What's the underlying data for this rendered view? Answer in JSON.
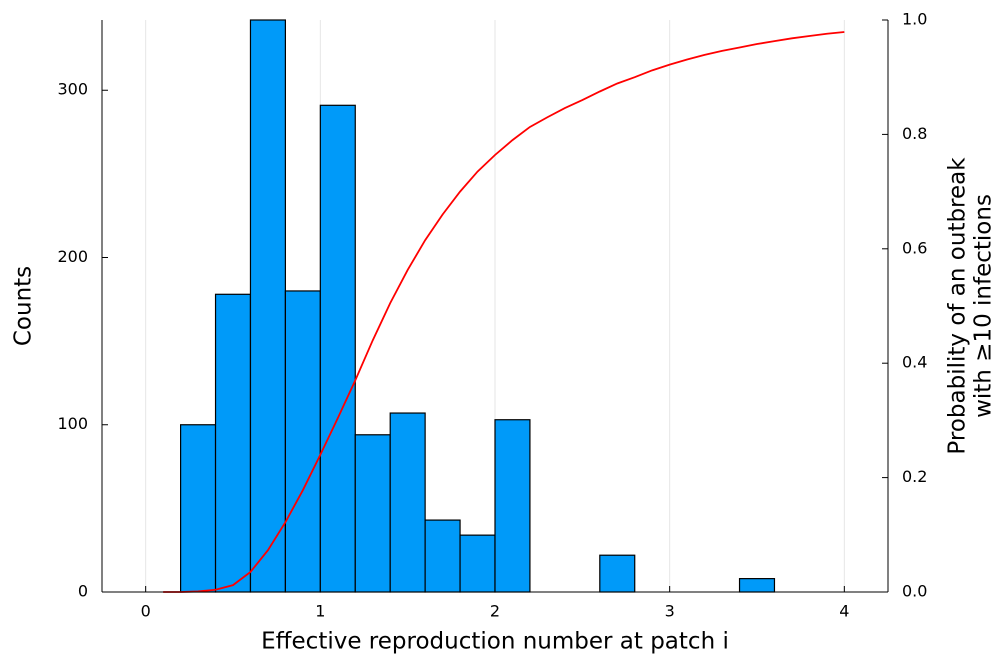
{
  "chart_data": {
    "type": "histogram",
    "xlabel": "Effective reproduction number at patch i",
    "ylabel": "Counts",
    "y2label": [
      "Probability of an outbreak",
      "with ≥10 infections"
    ],
    "xlim": [
      -0.25,
      4.25
    ],
    "xticks": [
      0,
      1,
      2,
      3,
      4
    ],
    "ylim": [
      0,
      342
    ],
    "yticks": [
      0,
      100,
      200,
      300
    ],
    "y2lim": [
      0,
      1
    ],
    "y2ticks": [
      {
        "value": 0,
        "label": "0.0"
      },
      0.2,
      0.4,
      0.6,
      0.8,
      {
        "value": 1,
        "label": "1.0"
      }
    ],
    "grid": "x",
    "series": [
      {
        "type": "histogram",
        "color": "#009af9",
        "bins": [
          0.2,
          0.4,
          0.6,
          0.8,
          1.0,
          1.2,
          1.4,
          1.6,
          1.8,
          2.0,
          2.2,
          2.4,
          2.6,
          2.8,
          3.0,
          3.2,
          3.4,
          3.6
        ],
        "values": [
          100,
          178,
          342,
          180,
          291,
          94,
          107,
          43,
          34,
          103,
          0,
          0,
          22,
          0,
          0,
          0,
          8
        ]
      },
      {
        "type": "line",
        "color": "#ff0000",
        "axis": "y2",
        "x": [
          0.1,
          0.2,
          0.3,
          0.4,
          0.5,
          0.6,
          0.7,
          0.8,
          0.9,
          1.0,
          1.1,
          1.2,
          1.3,
          1.4,
          1.5,
          1.6,
          1.7,
          1.8,
          1.9,
          2.0,
          2.1,
          2.2,
          2.3,
          2.4,
          2.5,
          2.6,
          2.7,
          2.8,
          2.9,
          3.0,
          3.1,
          3.2,
          3.3,
          3.4,
          3.5,
          3.6,
          3.7,
          3.8,
          3.9,
          4.0
        ],
        "values": [
          0,
          0,
          0.001,
          0.004,
          0.012,
          0.035,
          0.073,
          0.122,
          0.178,
          0.24,
          0.304,
          0.37,
          0.44,
          0.505,
          0.563,
          0.615,
          0.66,
          0.7,
          0.735,
          0.764,
          0.79,
          0.813,
          0.83,
          0.846,
          0.86,
          0.875,
          0.889,
          0.9,
          0.912,
          0.922,
          0.931,
          0.939,
          0.946,
          0.952,
          0.958,
          0.963,
          0.968,
          0.972,
          0.976,
          0.979
        ]
      }
    ]
  }
}
